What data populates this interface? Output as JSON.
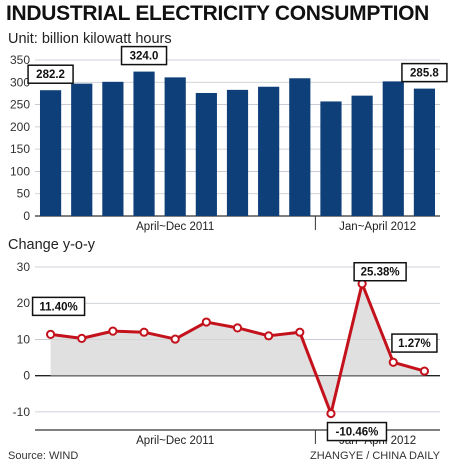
{
  "title": "INDUSTRIAL ELECTRICITY CONSUMPTION",
  "source": "Source: WIND",
  "credit": "ZHANGYE / CHINA DAILY",
  "colors": {
    "bar": "#0e3f78",
    "line": "#c4121c",
    "area": "#d6d6d6"
  },
  "chart_data": [
    {
      "type": "bar",
      "subtitle": "Unit: billion kilowatt hours",
      "ylim": [
        0,
        350
      ],
      "yticks": [
        0,
        50,
        100,
        150,
        200,
        250,
        300,
        350
      ],
      "grid": true,
      "period_labels": [
        "April~Dec 2011",
        "Jan~April 2012"
      ],
      "values": [
        282.2,
        297,
        301,
        324.0,
        311,
        276,
        283,
        290,
        309,
        257,
        270,
        302,
        285.8
      ],
      "callouts": [
        {
          "index": 0,
          "text": "282.2"
        },
        {
          "index": 3,
          "text": "324.0"
        },
        {
          "index": 12,
          "text": "285.8"
        }
      ]
    },
    {
      "type": "area",
      "subtitle": "Change y-o-y",
      "ylim": [
        -15,
        30
      ],
      "yticks": [
        -10,
        0,
        10,
        20,
        30
      ],
      "grid": true,
      "period_labels": [
        "April~Dec 2011",
        "Jan~April 2012"
      ],
      "values": [
        11.4,
        10.3,
        12.3,
        12.0,
        10.1,
        14.8,
        13.2,
        11.0,
        12.0,
        -10.46,
        25.38,
        3.7,
        1.27
      ],
      "callouts": [
        {
          "index": 0,
          "text": "11.40%"
        },
        {
          "index": 9,
          "text": "-10.46%"
        },
        {
          "index": 10,
          "text": "25.38%"
        },
        {
          "index": 12,
          "text": "1.27%"
        }
      ]
    }
  ]
}
